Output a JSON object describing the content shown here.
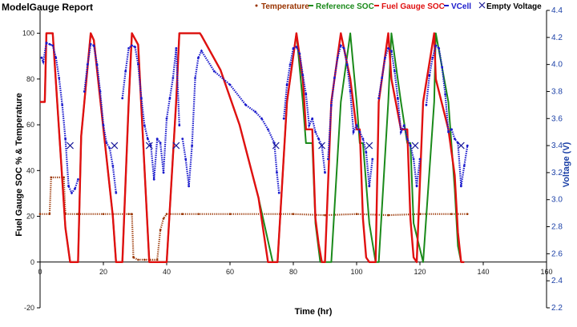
{
  "chart_data": {
    "type": "line",
    "title": "ModelGauge Report",
    "xlabel": "Time (hr)",
    "ylabel_left": "Fuel Gauge SOC % & Temperature",
    "ylabel_right": "Voltage (V)",
    "xlim": [
      0,
      160
    ],
    "ylim_left": [
      -20,
      110
    ],
    "ylim_right": [
      2.2,
      4.4
    ],
    "x_ticks": [
      0,
      20,
      40,
      60,
      80,
      100,
      120,
      140,
      160
    ],
    "y_ticks_left": [
      -20,
      0,
      20,
      40,
      60,
      80,
      100
    ],
    "y_ticks_right": [
      2.2,
      2.4,
      2.6,
      2.8,
      3.0,
      3.2,
      3.4,
      3.6,
      3.8,
      4.0,
      4.2,
      4.4
    ],
    "grid": false,
    "legend_position": "top-right",
    "series": [
      {
        "name": "Temperature",
        "color": "#993300",
        "axis": "left",
        "marker": "dot",
        "x": [
          0,
          3,
          3.5,
          7.5,
          8,
          12,
          20,
          28,
          29,
          29.5,
          31,
          33,
          37,
          38,
          39,
          40,
          45,
          50,
          60,
          70,
          80,
          90,
          100,
          110,
          120,
          130,
          135
        ],
        "y": [
          21,
          21,
          37,
          37,
          21,
          21,
          21,
          21,
          21,
          2,
          1,
          1,
          1,
          14,
          19,
          21,
          21,
          21,
          21,
          21,
          21,
          20.5,
          21,
          20.5,
          21,
          21,
          21
        ]
      },
      {
        "name": "Reference SOC",
        "color": "#1a8a1a",
        "axis": "left",
        "x": [
          0,
          1.5,
          2,
          4,
          8,
          9.5,
          12,
          13,
          16,
          17,
          23,
          24,
          26,
          28,
          29,
          31,
          34.5,
          37,
          40,
          43,
          44,
          47,
          50.5,
          51,
          57,
          63,
          69,
          73.5,
          75,
          78,
          81,
          83,
          84,
          86,
          87,
          88.5,
          92,
          95,
          98,
          100,
          101,
          102,
          104,
          106,
          107,
          110,
          111,
          114,
          116,
          117,
          118,
          121,
          124.5,
          125,
          129,
          131,
          132,
          133
        ],
        "y": [
          70,
          70,
          100,
          100,
          15,
          0,
          0,
          55,
          100,
          97,
          20,
          0,
          0,
          70,
          100,
          95,
          0,
          0,
          0,
          70,
          100,
          100,
          100,
          99,
          84,
          60,
          28,
          0,
          0,
          70,
          100,
          70,
          52,
          52,
          17,
          0,
          0,
          70,
          100,
          70,
          52,
          52,
          17,
          0,
          0,
          70,
          100,
          70,
          52,
          52,
          17,
          0,
          70,
          100,
          70,
          32,
          7,
          0
        ]
      },
      {
        "name": "Fuel Gauge SOC",
        "color": "#e01010",
        "axis": "left",
        "x": [
          0,
          1.5,
          2,
          4,
          8,
          9.5,
          12,
          13,
          16,
          17,
          23,
          24,
          26,
          28,
          29,
          31,
          34.5,
          37,
          40,
          43,
          44,
          47,
          50.5,
          51,
          57,
          63,
          69,
          72,
          75,
          78,
          81,
          83,
          84,
          86,
          87,
          88,
          89,
          90,
          92,
          95,
          98,
          100,
          101,
          102,
          103,
          104,
          106,
          107,
          110,
          111,
          114,
          116,
          117,
          118,
          119,
          121,
          124.5,
          125,
          129,
          131,
          132,
          133,
          134
        ],
        "y": [
          70,
          70,
          100,
          100,
          15,
          0,
          0,
          55,
          100,
          97,
          20,
          0,
          0,
          70,
          100,
          95,
          0,
          0,
          0,
          70,
          100,
          100,
          100,
          99,
          84,
          60,
          28,
          0,
          0,
          70,
          100,
          80,
          58,
          58,
          19,
          8,
          0,
          0,
          70,
          100,
          80,
          58,
          58,
          19,
          2,
          0,
          0,
          70,
          100,
          80,
          58,
          58,
          19,
          2,
          0,
          70,
          100,
          80,
          58,
          38,
          13,
          0,
          0
        ]
      },
      {
        "name": "VCell",
        "color": "#1a1acc",
        "axis": "right",
        "marker": "dot",
        "x": [
          0.5,
          1,
          2,
          3,
          4,
          5,
          6,
          7,
          8,
          9,
          10,
          11,
          12,
          14,
          15,
          16,
          17,
          18,
          19,
          20,
          21,
          22,
          23,
          24,
          26,
          27,
          28,
          29,
          30,
          31,
          32,
          33,
          34,
          35,
          36,
          37,
          38,
          39,
          40,
          41,
          42,
          43,
          44,
          45,
          46,
          47,
          48,
          49,
          50,
          51,
          55,
          60,
          65,
          68,
          70,
          72,
          74,
          74.8,
          75.5,
          77,
          78,
          79,
          80,
          81,
          82,
          83,
          84,
          85,
          86,
          87,
          88,
          89,
          90,
          91,
          92,
          93,
          94,
          95,
          96,
          97,
          98,
          99,
          100,
          101,
          102,
          103,
          104,
          105,
          107,
          108,
          109,
          110,
          111,
          112,
          113,
          114,
          115,
          116,
          117,
          118,
          119,
          120,
          122,
          123,
          124,
          125,
          126,
          127,
          128,
          129,
          130,
          131,
          132,
          133,
          134,
          135
        ],
        "y": [
          4.05,
          4.02,
          4.16,
          4.15,
          4.14,
          4.05,
          3.9,
          3.7,
          3.45,
          3.1,
          3.05,
          3.08,
          3.15,
          3.8,
          4.0,
          4.15,
          4.14,
          4.0,
          3.8,
          3.55,
          3.42,
          3.38,
          3.25,
          3.05,
          3.75,
          3.95,
          4.12,
          4.14,
          4.13,
          4.0,
          3.75,
          3.55,
          3.45,
          3.4,
          3.15,
          3.45,
          3.42,
          3.2,
          3.6,
          3.75,
          3.9,
          4.12,
          3.55,
          3.45,
          3.3,
          3.1,
          3.4,
          3.9,
          4.05,
          4.1,
          3.95,
          3.85,
          3.7,
          3.65,
          3.6,
          3.52,
          3.42,
          3.2,
          3.05,
          3.6,
          3.85,
          4.0,
          4.12,
          4.13,
          4.08,
          3.92,
          3.78,
          3.55,
          3.6,
          3.5,
          3.45,
          3.4,
          3.2,
          3.3,
          3.7,
          3.9,
          4.05,
          4.14,
          4.12,
          4.0,
          3.8,
          3.5,
          3.55,
          3.5,
          3.45,
          3.35,
          3.1,
          3.3,
          3.75,
          3.9,
          4.05,
          4.12,
          4.1,
          3.95,
          3.75,
          3.5,
          3.55,
          3.45,
          3.4,
          3.3,
          3.1,
          3.3,
          3.7,
          3.92,
          4.05,
          4.14,
          4.12,
          3.98,
          3.78,
          3.5,
          3.52,
          3.45,
          3.42,
          3.1,
          3.25,
          3.4
        ],
        "gaps_after_x": [
          12,
          24,
          44,
          75.5,
          90,
          105,
          120
        ]
      },
      {
        "name": "Empty Voltage",
        "color": "#1a1a99",
        "axis": "right",
        "marker": "x",
        "x": [
          9.5,
          23.5,
          34.5,
          43,
          74.5,
          89,
          104,
          118.5,
          133
        ],
        "y": [
          3.4,
          3.4,
          3.4,
          3.4,
          3.4,
          3.4,
          3.4,
          3.4,
          3.4
        ]
      }
    ]
  }
}
